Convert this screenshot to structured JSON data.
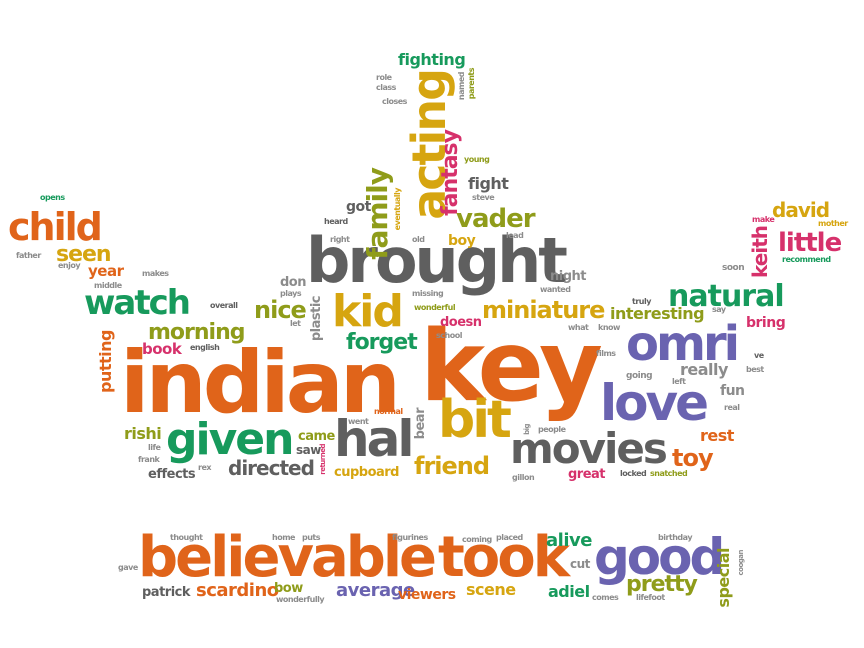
{
  "colors": {
    "orange": "#e0641a",
    "gray": "#5f5f5f",
    "green": "#179a5c",
    "purple": "#6a63b0",
    "yellow": "#d6a510",
    "olive": "#8f9c1a",
    "pink": "#d6316b",
    "light_gray": "#8c8c8c"
  },
  "words": [
    {
      "text": "indian",
      "color": "orange"
    },
    {
      "text": "key",
      "color": "orange"
    },
    {
      "text": "brought",
      "color": "gray"
    },
    {
      "text": "believable",
      "color": "orange"
    },
    {
      "text": "took",
      "color": "orange"
    },
    {
      "text": "good",
      "color": "purple"
    },
    {
      "text": "love",
      "color": "purple"
    },
    {
      "text": "omri",
      "color": "purple"
    },
    {
      "text": "bit",
      "color": "yellow"
    },
    {
      "text": "hal",
      "color": "gray"
    },
    {
      "text": "given",
      "color": "green"
    },
    {
      "text": "movies",
      "color": "gray"
    },
    {
      "text": "acting",
      "color": "yellow"
    },
    {
      "text": "kid",
      "color": "yellow"
    },
    {
      "text": "watch",
      "color": "green"
    },
    {
      "text": "child",
      "color": "orange"
    },
    {
      "text": "natural",
      "color": "green"
    },
    {
      "text": "miniature",
      "color": "yellow"
    },
    {
      "text": "family",
      "color": "olive"
    },
    {
      "text": "fantasy",
      "color": "pink"
    },
    {
      "text": "vader",
      "color": "olive"
    },
    {
      "text": "seen",
      "color": "yellow"
    },
    {
      "text": "little",
      "color": "pink"
    },
    {
      "text": "david",
      "color": "yellow"
    },
    {
      "text": "keith",
      "color": "pink"
    },
    {
      "text": "friend",
      "color": "yellow"
    },
    {
      "text": "toy",
      "color": "orange"
    },
    {
      "text": "pretty",
      "color": "olive"
    },
    {
      "text": "morning",
      "color": "olive"
    },
    {
      "text": "nice",
      "color": "olive"
    },
    {
      "text": "forget",
      "color": "green"
    },
    {
      "text": "directed",
      "color": "gray"
    },
    {
      "text": "scardino",
      "color": "orange"
    },
    {
      "text": "fighting",
      "color": "green"
    },
    {
      "text": "fight",
      "color": "gray"
    },
    {
      "text": "interesting",
      "color": "olive"
    },
    {
      "text": "really",
      "color": "light_gray"
    },
    {
      "text": "year",
      "color": "orange"
    },
    {
      "text": "alive",
      "color": "green"
    },
    {
      "text": "special",
      "color": "olive"
    },
    {
      "text": "average",
      "color": "purple"
    },
    {
      "text": "viewers",
      "color": "orange"
    },
    {
      "text": "scene",
      "color": "yellow"
    },
    {
      "text": "adiel",
      "color": "green"
    },
    {
      "text": "rishi",
      "color": "olive"
    },
    {
      "text": "putting",
      "color": "orange"
    },
    {
      "text": "book",
      "color": "pink"
    },
    {
      "text": "rest",
      "color": "orange"
    },
    {
      "text": "fun",
      "color": "light_gray"
    },
    {
      "text": "bring",
      "color": "pink"
    },
    {
      "text": "bear",
      "color": "light_gray"
    },
    {
      "text": "boy",
      "color": "yellow"
    },
    {
      "text": "got",
      "color": "gray"
    },
    {
      "text": "night",
      "color": "light_gray"
    },
    {
      "text": "doesn",
      "color": "pink"
    },
    {
      "text": "plastic",
      "color": "light_gray"
    },
    {
      "text": "don",
      "color": "light_gray"
    },
    {
      "text": "effects",
      "color": "gray"
    },
    {
      "text": "cupboard",
      "color": "yellow"
    },
    {
      "text": "came",
      "color": "olive"
    },
    {
      "text": "saw",
      "color": "gray"
    },
    {
      "text": "great",
      "color": "pink"
    },
    {
      "text": "patrick",
      "color": "gray"
    },
    {
      "text": "bow",
      "color": "olive"
    },
    {
      "text": "cut",
      "color": "light_gray"
    },
    {
      "text": "recommend",
      "color": "green"
    },
    {
      "text": "mother",
      "color": "yellow"
    },
    {
      "text": "soon",
      "color": "light_gray"
    },
    {
      "text": "make",
      "color": "pink"
    },
    {
      "text": "steve",
      "color": "light_gray"
    },
    {
      "text": "young",
      "color": "olive"
    },
    {
      "text": "lead",
      "color": "light_gray"
    },
    {
      "text": "old",
      "color": "light_gray"
    },
    {
      "text": "eventually",
      "color": "yellow"
    },
    {
      "text": "heard",
      "color": "gray"
    },
    {
      "text": "right",
      "color": "light_gray"
    },
    {
      "text": "role",
      "color": "light_gray"
    },
    {
      "text": "class",
      "color": "light_gray"
    },
    {
      "text": "closes",
      "color": "light_gray"
    },
    {
      "text": "named",
      "color": "light_gray"
    },
    {
      "text": "parents",
      "color": "olive"
    },
    {
      "text": "opens",
      "color": "green"
    },
    {
      "text": "father",
      "color": "light_gray"
    },
    {
      "text": "enjoy",
      "color": "light_gray"
    },
    {
      "text": "makes",
      "color": "light_gray"
    },
    {
      "text": "middle",
      "color": "light_gray"
    },
    {
      "text": "overall",
      "color": "gray"
    },
    {
      "text": "plays",
      "color": "light_gray"
    },
    {
      "text": "let",
      "color": "light_gray"
    },
    {
      "text": "missing",
      "color": "light_gray"
    },
    {
      "text": "wonderful",
      "color": "olive"
    },
    {
      "text": "school",
      "color": "light_gray"
    },
    {
      "text": "truly",
      "color": "gray"
    },
    {
      "text": "say",
      "color": "light_gray"
    },
    {
      "text": "know",
      "color": "light_gray"
    },
    {
      "text": "what",
      "color": "light_gray"
    },
    {
      "text": "english",
      "color": "gray"
    },
    {
      "text": "films",
      "color": "light_gray"
    },
    {
      "text": "going",
      "color": "light_gray"
    },
    {
      "text": "left",
      "color": "light_gray"
    },
    {
      "text": "ve",
      "color": "gray"
    },
    {
      "text": "best",
      "color": "light_gray"
    },
    {
      "text": "real",
      "color": "light_gray"
    },
    {
      "text": "life",
      "color": "light_gray"
    },
    {
      "text": "frank",
      "color": "light_gray"
    },
    {
      "text": "rex",
      "color": "light_gray"
    },
    {
      "text": "returned",
      "color": "pink"
    },
    {
      "text": "went",
      "color": "light_gray"
    },
    {
      "text": "normal",
      "color": "orange"
    },
    {
      "text": "big",
      "color": "light_gray"
    },
    {
      "text": "people",
      "color": "light_gray"
    },
    {
      "text": "gillon",
      "color": "light_gray"
    },
    {
      "text": "locked",
      "color": "gray"
    },
    {
      "text": "snatched",
      "color": "olive"
    },
    {
      "text": "thought",
      "color": "light_gray"
    },
    {
      "text": "gave",
      "color": "light_gray"
    },
    {
      "text": "home",
      "color": "light_gray"
    },
    {
      "text": "puts",
      "color": "light_gray"
    },
    {
      "text": "wonderfully",
      "color": "light_gray"
    },
    {
      "text": "figurines",
      "color": "light_gray"
    },
    {
      "text": "coming",
      "color": "light_gray"
    },
    {
      "text": "placed",
      "color": "light_gray"
    },
    {
      "text": "birthday",
      "color": "light_gray"
    },
    {
      "text": "comes",
      "color": "light_gray"
    },
    {
      "text": "lifefoot",
      "color": "light_gray"
    },
    {
      "text": "coogan",
      "color": "light_gray"
    },
    {
      "text": "wanted",
      "color": "light_gray"
    }
  ]
}
